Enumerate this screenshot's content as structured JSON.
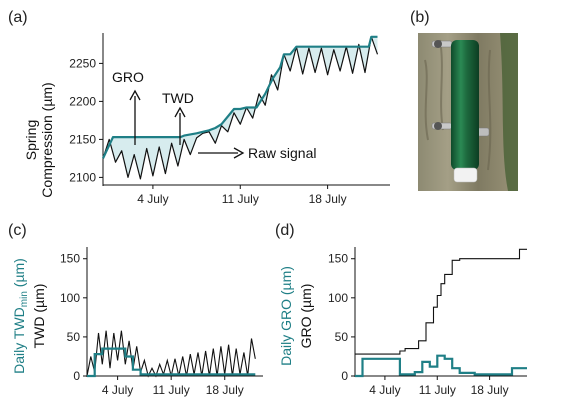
{
  "colors": {
    "teal": "#1f7f86",
    "fill": "#d7ecee",
    "black": "#111111",
    "green": "#1e6b3f"
  },
  "panels": {
    "a": {
      "letter": "(a)"
    },
    "b": {
      "letter": "(b)"
    },
    "c": {
      "letter": "(c)"
    },
    "d": {
      "letter": "(d)"
    }
  },
  "chart_data": [
    {
      "panel": "a",
      "type": "line",
      "ylabel": [
        "Spring",
        "Compression (µm)"
      ],
      "ylim": [
        2090,
        2290
      ],
      "xlim": [
        0,
        23
      ],
      "yticks": [
        2100,
        2150,
        2200,
        2250
      ],
      "xticks": [
        {
          "x": 4,
          "label": "4 July"
        },
        {
          "x": 11,
          "label": "11 July"
        },
        {
          "x": 18,
          "label": "18 July"
        }
      ],
      "annotations": {
        "gro": "GRO",
        "twd": "TWD",
        "raw": "Raw signal"
      },
      "series": [
        {
          "role": "raw",
          "x": [
            0,
            0.5,
            1,
            1.5,
            2,
            2.5,
            3,
            3.5,
            4,
            4.5,
            5,
            5.5,
            6,
            6.5,
            7,
            7.5,
            8,
            8.5,
            9,
            9.5,
            10,
            10.5,
            11,
            11.5,
            12,
            12.5,
            13,
            13.5,
            14,
            14.5,
            15,
            15.5,
            16,
            16.5,
            17,
            17.5,
            18,
            18.5,
            19,
            19.5,
            20,
            20.5,
            21,
            21.5,
            22
          ],
          "y": [
            2125,
            2150,
            2120,
            2135,
            2100,
            2130,
            2098,
            2138,
            2102,
            2140,
            2105,
            2145,
            2115,
            2150,
            2130,
            2152,
            2158,
            2160,
            2145,
            2168,
            2160,
            2185,
            2170,
            2192,
            2178,
            2210,
            2195,
            2235,
            2215,
            2262,
            2240,
            2272,
            2236,
            2270,
            2238,
            2270,
            2235,
            2268,
            2240,
            2272,
            2237,
            2275,
            2238,
            2285,
            2262
          ]
        },
        {
          "role": "envelope",
          "x": [
            0,
            0.8,
            1,
            6.2,
            6.5,
            7.5,
            8.5,
            9,
            9.5,
            10.5,
            11,
            11.5,
            12.3,
            13,
            13.6,
            14.2,
            14.5,
            15,
            15.5,
            21.3,
            21.5,
            22
          ],
          "y": [
            2125,
            2153,
            2153,
            2153,
            2155,
            2158,
            2162,
            2165,
            2170,
            2190,
            2190,
            2192,
            2192,
            2210,
            2230,
            2245,
            2262,
            2262,
            2272,
            2272,
            2285,
            2285
          ]
        }
      ]
    },
    {
      "panel": "c",
      "type": "line",
      "ylabel_outer": "Daily TWD",
      "ylabel_outer_sub": "min",
      "ylabel_outer_unit": " (µm)",
      "ylabel_inner": "TWD (µm)",
      "ylim": [
        0,
        165
      ],
      "xlim": [
        0,
        23
      ],
      "yticks": [
        0,
        50,
        100,
        150
      ],
      "xticks": [
        {
          "x": 4,
          "label": "4 July"
        },
        {
          "x": 11,
          "label": "11 July"
        },
        {
          "x": 18,
          "label": "18 July"
        }
      ],
      "series": [
        {
          "role": "TWD",
          "x": [
            0,
            0.5,
            1,
            1.5,
            2,
            2.5,
            3,
            3.5,
            4,
            4.5,
            5,
            5.5,
            6,
            6.5,
            7,
            7.5,
            8,
            8.5,
            9,
            9.5,
            10,
            10.5,
            11,
            11.5,
            12,
            12.5,
            13,
            13.5,
            14,
            14.5,
            15,
            15.5,
            16,
            16.5,
            17,
            17.5,
            18,
            18.5,
            19,
            19.5,
            20,
            20.5,
            21,
            21.5,
            22
          ],
          "y": [
            0,
            25,
            5,
            55,
            15,
            58,
            10,
            55,
            20,
            58,
            15,
            45,
            8,
            38,
            5,
            20,
            0,
            10,
            0,
            15,
            2,
            20,
            0,
            22,
            0,
            25,
            0,
            28,
            2,
            30,
            0,
            32,
            0,
            35,
            0,
            38,
            2,
            40,
            0,
            35,
            2,
            30,
            0,
            48,
            22
          ]
        },
        {
          "role": "Daily TWDmin",
          "x": [
            0,
            1,
            1,
            2,
            2,
            5,
            5,
            6,
            6,
            7,
            7,
            22
          ],
          "y": [
            0,
            0,
            28,
            28,
            35,
            35,
            25,
            25,
            8,
            8,
            2,
            2
          ]
        }
      ]
    },
    {
      "panel": "d",
      "type": "line",
      "ylabel_outer": "Daily GRO (µm)",
      "ylabel_inner": "GRO (µm)",
      "ylim": [
        0,
        165
      ],
      "xlim": [
        0,
        23
      ],
      "yticks": [
        0,
        50,
        100,
        150
      ],
      "xticks": [
        {
          "x": 4,
          "label": "4 July"
        },
        {
          "x": 11,
          "label": "11 July"
        },
        {
          "x": 18,
          "label": "18 July"
        }
      ],
      "series": [
        {
          "role": "GRO",
          "x": [
            0,
            6,
            6,
            6.7,
            6.7,
            8.5,
            8.5,
            9.5,
            9.5,
            10,
            10,
            10.5,
            10.5,
            11,
            11,
            11.5,
            11.5,
            12,
            12,
            13,
            13,
            14,
            14,
            15,
            15,
            22,
            22,
            23
          ],
          "y": [
            28,
            28,
            32,
            32,
            35,
            35,
            45,
            45,
            68,
            68,
            68,
            68,
            88,
            88,
            103,
            103,
            118,
            118,
            130,
            130,
            148,
            148,
            150,
            150,
            150,
            150,
            162,
            162
          ]
        },
        {
          "role": "Daily GRO",
          "x": [
            0,
            1,
            1,
            6,
            6,
            8,
            8,
            9,
            9,
            10,
            10,
            11,
            11,
            12,
            12,
            13,
            13,
            14,
            14,
            16,
            16,
            21,
            21,
            23
          ],
          "y": [
            0,
            0,
            22,
            22,
            2,
            2,
            5,
            5,
            18,
            18,
            12,
            12,
            26,
            26,
            22,
            22,
            10,
            10,
            4,
            4,
            2,
            2,
            10,
            10
          ]
        }
      ]
    }
  ]
}
